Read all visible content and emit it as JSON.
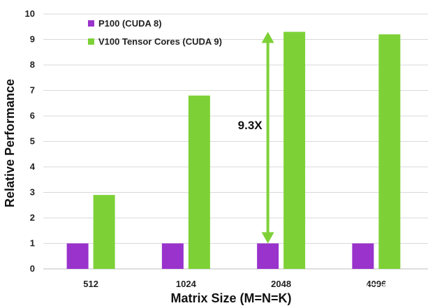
{
  "chart_data": {
    "type": "bar",
    "title": "",
    "xlabel": "Matrix Size (M=N=K)",
    "ylabel": "Relative Performance",
    "categories": [
      "512",
      "1024",
      "2048",
      "4096"
    ],
    "ylim": [
      0,
      10
    ],
    "yticks": [
      0,
      1,
      2,
      3,
      4,
      5,
      6,
      7,
      8,
      9,
      10
    ],
    "grid": true,
    "legend_position": "top-left",
    "series": [
      {
        "name": "P100 (CUDA 8)",
        "color": "#9933cc",
        "values": [
          1,
          1,
          1,
          1
        ]
      },
      {
        "name": "V100 Tensor Cores (CUDA 9)",
        "color": "#7dd136",
        "values": [
          2.9,
          6.8,
          9.3,
          9.2
        ]
      }
    ],
    "annotation": {
      "text": "9.3X",
      "category": "2048",
      "from": 1,
      "to": 9.3,
      "arrow_color": "#7dd136"
    }
  },
  "watermark": "知乎 @江南泣"
}
